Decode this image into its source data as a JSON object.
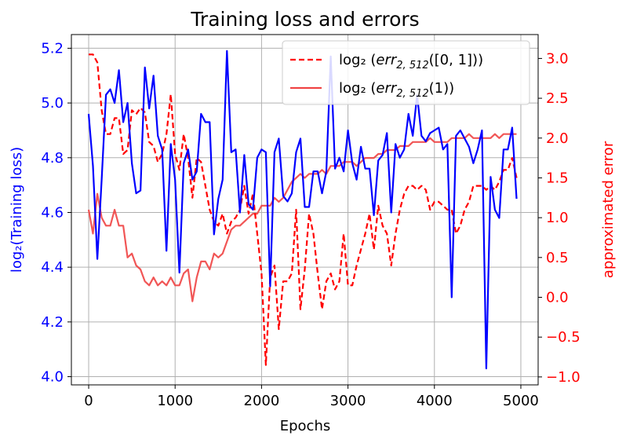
{
  "chart_data": {
    "type": "line",
    "title": "Training loss and errors",
    "xlabel": "Epochs",
    "ylabel_left": "log₂(Training loss)",
    "ylabel_right": "approximated error",
    "xlim": [
      -200,
      5200
    ],
    "ylim_left": [
      3.97,
      5.25
    ],
    "ylim_right": [
      -1.1,
      3.3
    ],
    "x_ticks": [
      0,
      1000,
      2000,
      3000,
      4000,
      5000
    ],
    "y_ticks_left": [
      4.0,
      4.2,
      4.4,
      4.6,
      4.8,
      5.0,
      5.2
    ],
    "y_ticks_right": [
      -1.0,
      -0.5,
      0.0,
      0.5,
      1.0,
      1.5,
      2.0,
      2.5,
      3.0
    ],
    "x_tick_labels": [
      "0",
      "1000",
      "2000",
      "3000",
      "4000",
      "5000"
    ],
    "y_tick_labels_left": [
      "4.0",
      "4.2",
      "4.4",
      "4.6",
      "4.8",
      "5.0",
      "5.2"
    ],
    "y_tick_labels_right": [
      "−1.0",
      "−0.5",
      "0.0",
      "0.5",
      "1.0",
      "1.5",
      "2.0",
      "2.5",
      "3.0"
    ],
    "grid": true,
    "legend_position": "top-right",
    "colors": {
      "loss": "#0000ff",
      "err_interval": "#ff0000",
      "err_point": "#f04444",
      "grid": "#b0b0b0"
    },
    "series": [
      {
        "name": "log₂(Training loss)",
        "axis": "left",
        "style": "solid",
        "x": [
          0,
          50,
          100,
          150,
          200,
          250,
          300,
          350,
          400,
          450,
          500,
          550,
          600,
          650,
          700,
          750,
          800,
          850,
          900,
          950,
          1000,
          1050,
          1100,
          1150,
          1200,
          1250,
          1300,
          1350,
          1400,
          1450,
          1500,
          1550,
          1600,
          1650,
          1700,
          1750,
          1800,
          1850,
          1900,
          1950,
          2000,
          2050,
          2100,
          2150,
          2200,
          2250,
          2300,
          2350,
          2400,
          2450,
          2500,
          2550,
          2600,
          2650,
          2700,
          2750,
          2800,
          2850,
          2900,
          2950,
          3000,
          3050,
          3100,
          3150,
          3200,
          3250,
          3300,
          3350,
          3400,
          3450,
          3500,
          3550,
          3600,
          3650,
          3700,
          3750,
          3800,
          3850,
          3900,
          3950,
          4000,
          4050,
          4100,
          4150,
          4200,
          4250,
          4300,
          4350,
          4400,
          4450,
          4500,
          4550,
          4600,
          4650,
          4700,
          4750,
          4800,
          4850,
          4900,
          4950
        ],
        "values": [
          4.96,
          4.77,
          4.43,
          4.72,
          5.03,
          5.05,
          5.0,
          5.12,
          4.93,
          5.0,
          4.78,
          4.67,
          4.68,
          5.13,
          4.98,
          5.1,
          4.88,
          4.83,
          4.46,
          4.85,
          4.72,
          4.38,
          4.78,
          4.83,
          4.72,
          4.75,
          4.96,
          4.93,
          4.93,
          4.52,
          4.65,
          4.72,
          5.19,
          4.82,
          4.83,
          4.6,
          4.81,
          4.63,
          4.61,
          4.8,
          4.83,
          4.82,
          4.33,
          4.82,
          4.87,
          4.66,
          4.64,
          4.67,
          4.82,
          4.87,
          4.62,
          4.62,
          4.75,
          4.75,
          4.67,
          4.75,
          5.17,
          4.76,
          4.8,
          4.75,
          4.9,
          4.78,
          4.72,
          4.84,
          4.76,
          4.76,
          4.59,
          4.79,
          4.81,
          4.89,
          4.6,
          4.85,
          4.8,
          4.83,
          4.96,
          4.88,
          5.03,
          4.88,
          4.86,
          4.89,
          4.9,
          4.91,
          4.83,
          4.85,
          4.29,
          4.88,
          4.9,
          4.87,
          4.84,
          4.78,
          4.83,
          4.9,
          4.03,
          4.73,
          4.61,
          4.58,
          4.83,
          4.83,
          4.91,
          4.65
        ]
      },
      {
        "name": "log₂ (err₂,₅₁₂([0,1]))",
        "axis": "right",
        "style": "dashed",
        "x": [
          0,
          50,
          100,
          150,
          200,
          250,
          300,
          350,
          400,
          450,
          500,
          550,
          600,
          650,
          700,
          750,
          800,
          850,
          900,
          950,
          1000,
          1050,
          1100,
          1150,
          1200,
          1250,
          1300,
          1350,
          1400,
          1450,
          1500,
          1550,
          1600,
          1650,
          1700,
          1750,
          1800,
          1850,
          1900,
          1950,
          2000,
          2050,
          2100,
          2150,
          2200,
          2250,
          2300,
          2350,
          2400,
          2450,
          2500,
          2550,
          2600,
          2650,
          2700,
          2750,
          2800,
          2850,
          2900,
          2950,
          3000,
          3050,
          3100,
          3150,
          3200,
          3250,
          3300,
          3350,
          3400,
          3450,
          3500,
          3550,
          3600,
          3650,
          3700,
          3750,
          3800,
          3850,
          3900,
          3950,
          4000,
          4050,
          4100,
          4150,
          4200,
          4250,
          4300,
          4350,
          4400,
          4450,
          4500,
          4550,
          4600,
          4650,
          4700,
          4750,
          4800,
          4850,
          4900,
          4950
        ],
        "values": [
          3.05,
          3.05,
          2.95,
          2.35,
          2.05,
          2.05,
          2.25,
          2.25,
          1.8,
          1.85,
          2.35,
          2.3,
          2.38,
          2.32,
          1.95,
          1.9,
          1.7,
          1.8,
          2.05,
          2.55,
          1.8,
          1.6,
          2.05,
          1.75,
          1.25,
          1.75,
          1.7,
          1.4,
          1.1,
          0.95,
          0.9,
          1.05,
          0.8,
          0.95,
          1.0,
          1.1,
          1.4,
          1.05,
          1.3,
          0.8,
          0.3,
          -0.85,
          0.25,
          0.4,
          -0.4,
          0.2,
          0.2,
          0.3,
          1.1,
          -0.15,
          0.35,
          1.05,
          0.8,
          0.3,
          -0.15,
          0.2,
          0.3,
          0.1,
          0.2,
          0.8,
          0.15,
          0.15,
          0.4,
          0.6,
          0.8,
          1.05,
          0.6,
          1.15,
          0.9,
          0.8,
          0.4,
          0.8,
          1.1,
          1.3,
          1.4,
          1.4,
          1.35,
          1.4,
          1.35,
          1.1,
          1.2,
          1.2,
          1.15,
          1.1,
          1.1,
          0.8,
          0.9,
          1.1,
          1.2,
          1.4,
          1.4,
          1.4,
          1.35,
          1.4,
          1.35,
          1.45,
          1.6,
          1.6,
          1.75,
          1.5
        ]
      },
      {
        "name": "log₂ (err₂,₅₁₂(1))",
        "axis": "right",
        "style": "solid",
        "x": [
          0,
          50,
          100,
          150,
          200,
          250,
          300,
          350,
          400,
          450,
          500,
          550,
          600,
          650,
          700,
          750,
          800,
          850,
          900,
          950,
          1000,
          1050,
          1100,
          1150,
          1200,
          1250,
          1300,
          1350,
          1400,
          1450,
          1500,
          1550,
          1600,
          1650,
          1700,
          1750,
          1800,
          1850,
          1900,
          1950,
          2000,
          2050,
          2100,
          2150,
          2200,
          2250,
          2300,
          2350,
          2400,
          2450,
          2500,
          2550,
          2600,
          2650,
          2700,
          2750,
          2800,
          2850,
          2900,
          2950,
          3000,
          3050,
          3100,
          3150,
          3200,
          3250,
          3300,
          3350,
          3400,
          3450,
          3500,
          3550,
          3600,
          3650,
          3700,
          3750,
          3800,
          3850,
          3900,
          3950,
          4000,
          4050,
          4100,
          4150,
          4200,
          4250,
          4300,
          4350,
          4400,
          4450,
          4500,
          4550,
          4600,
          4650,
          4700,
          4750,
          4800,
          4850,
          4900,
          4950
        ],
        "values": [
          1.1,
          0.8,
          1.3,
          1.0,
          0.9,
          0.9,
          1.1,
          0.9,
          0.9,
          0.5,
          0.55,
          0.4,
          0.35,
          0.2,
          0.15,
          0.25,
          0.15,
          0.2,
          0.15,
          0.25,
          0.15,
          0.15,
          0.3,
          0.35,
          -0.05,
          0.25,
          0.45,
          0.45,
          0.35,
          0.55,
          0.5,
          0.55,
          0.7,
          0.85,
          0.9,
          0.9,
          0.95,
          1.0,
          1.05,
          1.05,
          1.15,
          1.15,
          1.15,
          1.25,
          1.2,
          1.25,
          1.35,
          1.45,
          1.5,
          1.55,
          1.5,
          1.55,
          1.55,
          1.55,
          1.6,
          1.55,
          1.65,
          1.65,
          1.65,
          1.7,
          1.7,
          1.7,
          1.65,
          1.7,
          1.75,
          1.75,
          1.75,
          1.8,
          1.8,
          1.85,
          1.85,
          1.85,
          1.9,
          1.9,
          1.9,
          1.95,
          1.95,
          1.95,
          1.95,
          2.0,
          1.95,
          1.95,
          1.95,
          1.95,
          2.0,
          2.0,
          2.0,
          2.0,
          2.05,
          2.0,
          2.0,
          2.0,
          2.0,
          2.0,
          2.05,
          2.0,
          2.05,
          2.05,
          2.05,
          2.05
        ]
      }
    ],
    "legend": {
      "entries": [
        {
          "prefix": "log₂ (",
          "main": "err",
          "sub": "2, 512",
          "suffix": "([0, 1]))"
        },
        {
          "prefix": "log₂ (",
          "main": "err",
          "sub": "2, 512",
          "suffix": "(1))"
        }
      ]
    }
  }
}
